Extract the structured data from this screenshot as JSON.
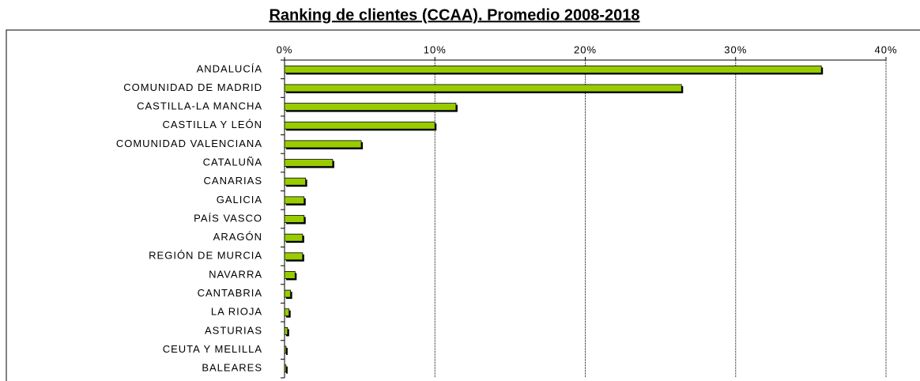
{
  "chart_data": {
    "type": "bar",
    "orientation": "horizontal",
    "title": "Ranking de clientes (CCAA). Promedio 2008-2018",
    "categories": [
      "ANDALUCÍA",
      "COMUNIDAD DE MADRID",
      "CASTILLA-LA MANCHA",
      "CASTILLA Y LEÓN",
      "COMUNIDAD VALENCIANA",
      "CATALUÑA",
      "CANARIAS",
      "GALICIA",
      "PAÍS VASCO",
      "ARAGÓN",
      "REGIÓN DE MURCIA",
      "NAVARRA",
      "CANTABRIA",
      "LA RIOJA",
      "ASTURIAS",
      "CEUTA Y MELILLA",
      "BALEARES"
    ],
    "values": [
      35.7,
      26.4,
      11.4,
      10.0,
      5.1,
      3.2,
      1.4,
      1.3,
      1.3,
      1.2,
      1.2,
      0.7,
      0.4,
      0.3,
      0.2,
      0.1,
      0.1
    ],
    "color": "#99cc00",
    "xlim": [
      0,
      40
    ],
    "xticks": [
      {
        "value": 0,
        "label": "0%"
      },
      {
        "value": 10,
        "label": "10%"
      },
      {
        "value": 20,
        "label": "20%"
      },
      {
        "value": 30,
        "label": "30%"
      },
      {
        "value": 40,
        "label": "40%"
      }
    ],
    "grid": true
  }
}
